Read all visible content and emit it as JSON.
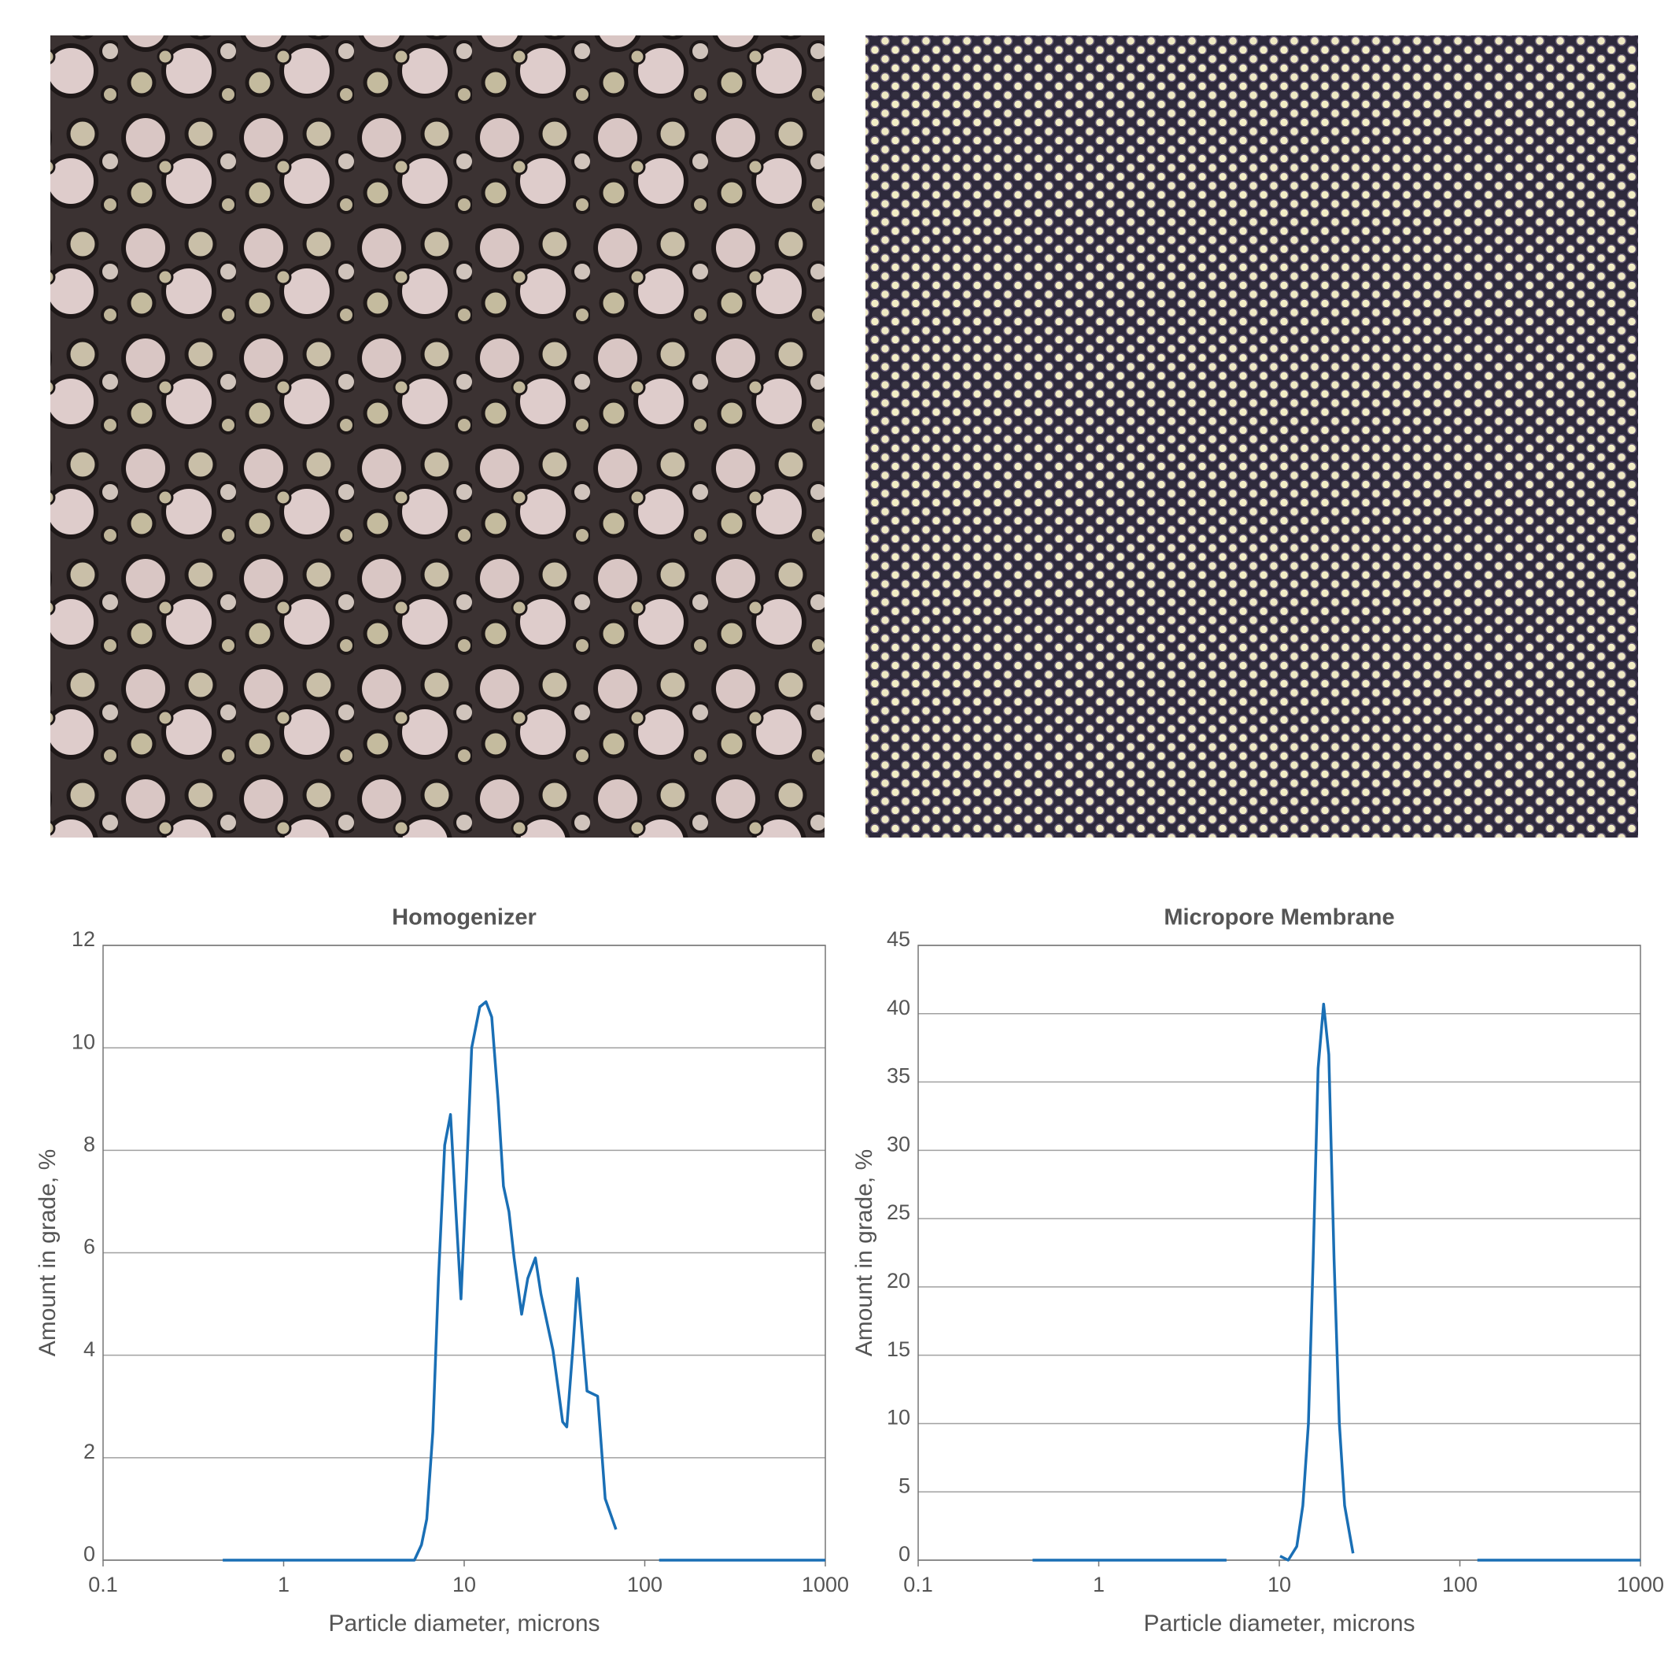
{
  "chart_data": [
    {
      "type": "line",
      "title": "Homogenizer",
      "xlabel": "Particle diameter, microns",
      "ylabel": "Amount in grade, %",
      "log_x": true,
      "grid": true,
      "color": "#1a6fb5",
      "xlim": [
        0.1,
        1000
      ],
      "xticks": [
        0.1,
        1,
        10,
        100,
        1000
      ],
      "ylim": [
        0,
        12
      ],
      "yticks": [
        0,
        2,
        4,
        6,
        8,
        10,
        12
      ],
      "x": [
        0.46,
        5.3,
        5.8,
        6.2,
        6.7,
        7.2,
        7.8,
        8.4,
        9.0,
        9.6,
        10.3,
        11.0,
        12.2,
        13.2,
        14.2,
        15.4,
        16.5,
        17.7,
        18.9,
        20.8,
        22.5,
        24.8,
        26.6,
        28.9,
        31.0,
        33.3,
        35.1,
        37.0,
        40.1,
        42.4,
        44.8,
        47.9,
        54.8,
        60.4,
        69.3,
        null,
        120,
        1000
      ],
      "values": [
        0,
        0,
        0.3,
        0.8,
        2.5,
        5.5,
        8.1,
        8.7,
        6.8,
        5.1,
        7.5,
        10.0,
        10.8,
        10.9,
        10.6,
        9.0,
        7.3,
        6.8,
        5.9,
        4.8,
        5.5,
        5.9,
        5.2,
        4.6,
        4.1,
        3.3,
        2.7,
        2.6,
        4.2,
        5.5,
        4.5,
        3.3,
        3.2,
        1.2,
        0.6,
        null,
        0,
        0
      ]
    },
    {
      "type": "line",
      "title": "Micropore Membrane",
      "xlabel": "Particle diameter, microns",
      "ylabel": "Amount in grade, %",
      "log_x": true,
      "grid": true,
      "color": "#1a6fb5",
      "xlim": [
        0.1,
        1000
      ],
      "xticks": [
        0.1,
        1,
        10,
        100,
        1000
      ],
      "ylim": [
        0,
        45
      ],
      "yticks": [
        0,
        5,
        10,
        15,
        20,
        25,
        30,
        35,
        40,
        45
      ],
      "x": [
        0.43,
        5.1,
        null,
        10.1,
        11.2,
        12.5,
        13.5,
        14.5,
        15.4,
        16.4,
        17.6,
        18.8,
        20.1,
        21.5,
        23.0,
        25.6,
        null,
        125,
        1000
      ],
      "values": [
        0,
        0,
        null,
        0.3,
        0,
        1,
        4,
        10,
        22,
        36,
        40.7,
        37,
        22,
        10,
        4,
        0.5,
        null,
        0,
        0
      ]
    }
  ]
}
